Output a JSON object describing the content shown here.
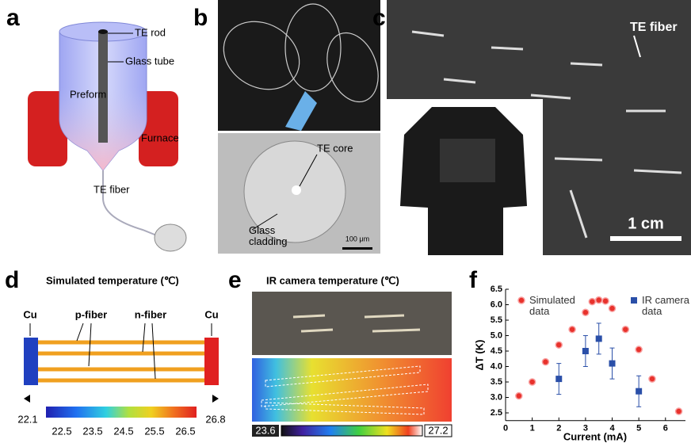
{
  "panels": {
    "a": {
      "label": "a",
      "te_rod": "TE rod",
      "glass_tube": "Glass tube",
      "preform": "Preform",
      "furnace": "Furnace",
      "te_fiber": "TE fiber"
    },
    "b": {
      "label": "b",
      "te_core": "TE core",
      "glass_cladding": "Glass cladding",
      "scale": "100 μm"
    },
    "c": {
      "label": "c",
      "te_fiber": "TE fiber",
      "scale": "1 cm"
    },
    "d": {
      "label": "d",
      "title": "Simulated temperature (℃)",
      "cu_left": "Cu",
      "cu_right": "Cu",
      "p_fiber": "p-fiber",
      "n_fiber": "n-fiber",
      "min": "22.1",
      "max": "26.8",
      "colorbar_ticks": [
        "22.5",
        "23.5",
        "24.5",
        "25.5",
        "26.5"
      ]
    },
    "e": {
      "label": "e",
      "title": "IR camera temperature (℃)",
      "min": "23.6",
      "max": "27.2"
    },
    "f": {
      "label": "f"
    }
  },
  "chart_data": {
    "type": "scatter",
    "xlabel": "Current (mA)",
    "ylabel": "ΔT (K)",
    "xlim": [
      0,
      6.75
    ],
    "ylim": [
      2.25,
      6.5
    ],
    "xticks": [
      0,
      1,
      2,
      3,
      4,
      5,
      6
    ],
    "yticks": [
      2.5,
      {
        "value": 3,
        "label": "3.0"
      },
      3.5,
      {
        "value": 4,
        "label": "4.0"
      },
      4.5,
      {
        "value": 5,
        "label": "5.0"
      },
      5.5,
      {
        "value": 6,
        "label": "6.0"
      },
      6.5
    ],
    "series": [
      {
        "name": "Simulated data",
        "color": "#e8322c",
        "marker": "circle",
        "x": [
          0.5,
          1,
          1.5,
          2,
          2.5,
          3,
          3.25,
          3.5,
          3.75,
          4,
          4.5,
          5,
          5.5,
          6.5
        ],
        "values": [
          3.05,
          3.5,
          4.15,
          4.7,
          5.2,
          5.75,
          6.1,
          6.15,
          6.12,
          5.88,
          5.2,
          4.55,
          3.6,
          2.55
        ]
      },
      {
        "name": "IR camera data",
        "color": "#2a4fa8",
        "marker": "square",
        "x": [
          2,
          3,
          3.5,
          4,
          5
        ],
        "values": [
          3.6,
          4.5,
          4.9,
          4.1,
          3.2
        ],
        "errors": [
          0.5,
          0.5,
          0.5,
          0.5,
          0.5
        ]
      }
    ]
  }
}
